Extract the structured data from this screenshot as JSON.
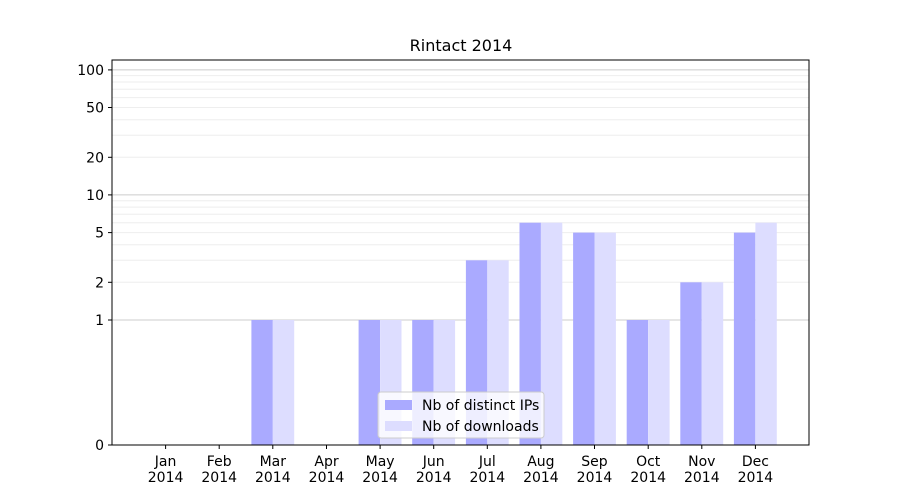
{
  "chart_data": {
    "type": "bar",
    "title": "Rintact 2014",
    "categories": [
      "Jan\n2014",
      "Feb\n2014",
      "Mar\n2014",
      "Apr\n2014",
      "May\n2014",
      "Jun\n2014",
      "Jul\n2014",
      "Aug\n2014",
      "Sep\n2014",
      "Oct\n2014",
      "Nov\n2014",
      "Dec\n2014"
    ],
    "series": [
      {
        "name": "Nb of distinct IPs",
        "values": [
          0,
          0,
          1,
          0,
          1,
          1,
          3,
          6,
          5,
          1,
          2,
          5
        ],
        "color": "#aaaaff"
      },
      {
        "name": "Nb of downloads",
        "values": [
          0,
          0,
          1,
          0,
          1,
          1,
          3,
          6,
          5,
          1,
          2,
          6
        ],
        "color": "#ddddff"
      }
    ],
    "yscale": "symlog",
    "ylim": [
      0,
      120
    ],
    "yticks": [
      "0",
      "1",
      "2",
      "5",
      "10",
      "20",
      "50",
      "100"
    ],
    "grid": true,
    "legend_position": "lower-center"
  }
}
